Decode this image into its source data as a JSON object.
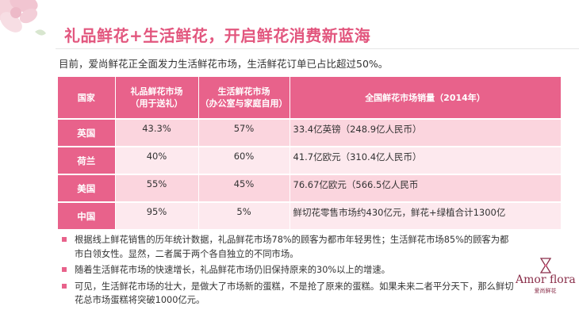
{
  "title": "礼品鲜花+生活鲜花，开启鲜花消费新蓝海",
  "intro": "目前，爱尚鲜花正全面发力生活鲜花市场，生活鲜花订单已占比超过50%。",
  "table": {
    "headers": {
      "country": "国家",
      "gift_line1": "礼品鲜花市场",
      "gift_line2": "（用于送礼）",
      "life_line1": "生活鲜花市场",
      "life_line2": "（办公室与家庭自用）",
      "sales": "全国鲜花市场销量（2014年）"
    },
    "rows": [
      {
        "country": "英国",
        "gift": "43.3%",
        "life": "57%",
        "sales": "33.4亿英镑（248.9亿人民币）"
      },
      {
        "country": "荷兰",
        "gift": "40%",
        "life": "60%",
        "sales": "41.7亿欧元（310.4亿人民币）"
      },
      {
        "country": "美国",
        "gift": "55%",
        "life": "45%",
        "sales": "76.67亿欧元（566.5亿人民币"
      },
      {
        "country": "中国",
        "gift": "95%",
        "life": "5%",
        "sales": "鲜切花零售市场约430亿元，鲜花+绿植合计1300亿"
      }
    ]
  },
  "notes": [
    "根据线上鲜花销售的历年统计数据，礼品鲜花市场78%的顾客为都市年轻男性；生活鲜花市场85%的顾客为都市白领女性。显然，二者属于两个各自独立的不同市场。",
    "随着生活鲜花市场的快速增长，礼品鲜花市场仍旧保持原来的30%以上的增速。",
    "可见，生活鲜花市场的壮大，是做大了市场新的蛋糕，不是抢了原来的蛋糕。如果未来二者平分天下，那么鲜切花总市场蛋糕将突破1000亿元。"
  ],
  "logo": {
    "name": "Amor flora",
    "sub": "爱尚鲜花"
  },
  "colors": {
    "accent": "#e8628b",
    "title": "#e2567e",
    "row_odd": "#fbd5de",
    "row_even": "#fde9ee",
    "logo": "#8a2f4a"
  },
  "icons": {
    "corner": "flower-icon",
    "logo": "hourglass-flower-icon",
    "bullet": "square-bullet-icon"
  }
}
